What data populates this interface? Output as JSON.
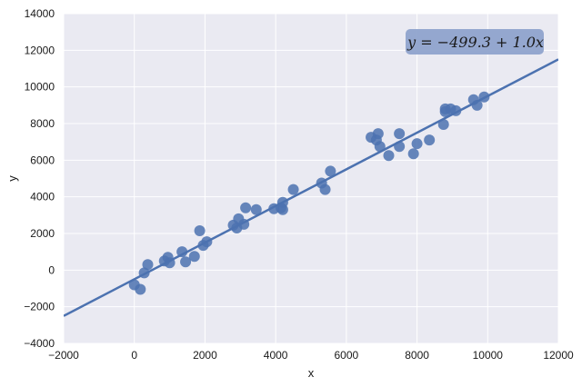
{
  "chart_data": {
    "type": "scatter",
    "title": "",
    "xlabel": "x",
    "ylabel": "y",
    "xlim": [
      -2000,
      12000
    ],
    "ylim": [
      -4000,
      14000
    ],
    "x_ticks": [
      "−2000",
      "0",
      "2000",
      "4000",
      "6000",
      "8000",
      "10000",
      "12000"
    ],
    "y_ticks": [
      "−4000",
      "−2000",
      "0",
      "2000",
      "4000",
      "6000",
      "8000",
      "10000",
      "12000",
      "14000"
    ],
    "grid": true,
    "background_color": "#EAEAF2",
    "grid_color": "#FFFFFF",
    "point_color": "#4C72B0",
    "line_color": "#4C72B0",
    "annotation": "y = −499.3 + 1.0x",
    "annotation_bg": "#8FA3CC",
    "fit": {
      "intercept": -499.3,
      "slope": 1.0
    },
    "points": [
      [
        0,
        -800
      ],
      [
        170,
        -1050
      ],
      [
        280,
        -150
      ],
      [
        380,
        300
      ],
      [
        850,
        500
      ],
      [
        950,
        700
      ],
      [
        1000,
        400
      ],
      [
        1350,
        1000
      ],
      [
        1450,
        450
      ],
      [
        1700,
        750
      ],
      [
        1850,
        2150
      ],
      [
        1950,
        1350
      ],
      [
        2050,
        1550
      ],
      [
        2800,
        2450
      ],
      [
        2900,
        2300
      ],
      [
        2950,
        2800
      ],
      [
        3100,
        2500
      ],
      [
        3150,
        3400
      ],
      [
        3450,
        3300
      ],
      [
        3950,
        3350
      ],
      [
        4150,
        3400
      ],
      [
        4200,
        3300
      ],
      [
        4200,
        3700
      ],
      [
        4500,
        4400
      ],
      [
        5300,
        4750
      ],
      [
        5400,
        4400
      ],
      [
        5550,
        5400
      ],
      [
        6700,
        7250
      ],
      [
        6850,
        7100
      ],
      [
        6900,
        7450
      ],
      [
        6950,
        6750
      ],
      [
        7200,
        6250
      ],
      [
        7500,
        7450
      ],
      [
        7500,
        6750
      ],
      [
        7900,
        6350
      ],
      [
        8000,
        6900
      ],
      [
        8350,
        7100
      ],
      [
        8750,
        7950
      ],
      [
        8800,
        8800
      ],
      [
        8800,
        8650
      ],
      [
        8950,
        8800
      ],
      [
        9100,
        8700
      ],
      [
        9600,
        9300
      ],
      [
        9700,
        9000
      ],
      [
        9900,
        9450
      ]
    ]
  }
}
